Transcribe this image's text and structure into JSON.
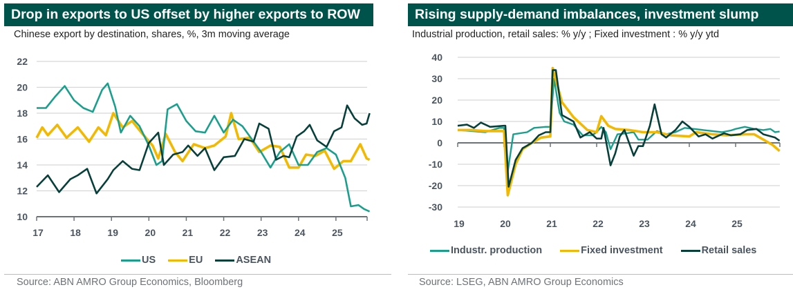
{
  "colors": {
    "header": "#00534a",
    "teal": "#1a9f8c",
    "yellow": "#f2b900",
    "dark": "#073f3a",
    "grid": "#d9d9d9"
  },
  "chart_data": [
    {
      "type": "line",
      "title": "Drop in exports to US offset by higher exports to ROW",
      "subtitle": "Chinese export by destination, shares, %, 3m moving average",
      "source": "Source: ABN AMRO Group Economics, Bloomberg",
      "ylim": [
        10,
        22
      ],
      "yticks": [
        10,
        12,
        14,
        16,
        18,
        20,
        22
      ],
      "xlim": [
        17,
        26
      ],
      "xticks": [
        17,
        18,
        19,
        20,
        21,
        22,
        23,
        24,
        25
      ],
      "legend_position": "bottom",
      "series": [
        {
          "name": "US",
          "color": "#1a9f8c",
          "points": [
            [
              17,
              18.4
            ],
            [
              17.25,
              18.4
            ],
            [
              17.5,
              19.3
            ],
            [
              17.75,
              20.1
            ],
            [
              18,
              19
            ],
            [
              18.25,
              18.4
            ],
            [
              18.5,
              18.1
            ],
            [
              18.75,
              19.8
            ],
            [
              18.9,
              20.3
            ],
            [
              19.1,
              18.5
            ],
            [
              19.25,
              16.5
            ],
            [
              19.5,
              17.8
            ],
            [
              19.75,
              17
            ],
            [
              20,
              15.5
            ],
            [
              20.2,
              14
            ],
            [
              20.35,
              14.3
            ],
            [
              20.5,
              18.3
            ],
            [
              20.75,
              18.7
            ],
            [
              21,
              17.4
            ],
            [
              21.25,
              16.6
            ],
            [
              21.5,
              16.5
            ],
            [
              21.75,
              17.8
            ],
            [
              22,
              16.5
            ],
            [
              22.25,
              17.5
            ],
            [
              22.5,
              17
            ],
            [
              22.75,
              16
            ],
            [
              23,
              15
            ],
            [
              23.25,
              13.8
            ],
            [
              23.5,
              15
            ],
            [
              23.75,
              15.6
            ],
            [
              24,
              14
            ],
            [
              24.25,
              14
            ],
            [
              24.5,
              15
            ],
            [
              24.75,
              15.3
            ],
            [
              25,
              14.8
            ],
            [
              25.25,
              13
            ],
            [
              25.4,
              10.8
            ],
            [
              25.6,
              10.9
            ],
            [
              25.75,
              10.6
            ],
            [
              25.9,
              10.4
            ]
          ]
        },
        {
          "name": "EU",
          "color": "#f2b900",
          "points": [
            [
              17,
              16.1
            ],
            [
              17.15,
              16.9
            ],
            [
              17.3,
              16.3
            ],
            [
              17.55,
              17.1
            ],
            [
              17.8,
              16.1
            ],
            [
              18.1,
              16.9
            ],
            [
              18.4,
              15.8
            ],
            [
              18.65,
              16.9
            ],
            [
              18.85,
              16.3
            ],
            [
              19.05,
              18
            ],
            [
              19.3,
              16.9
            ],
            [
              19.55,
              17.4
            ],
            [
              19.8,
              16.5
            ],
            [
              20.1,
              15.5
            ],
            [
              20.25,
              14.5
            ],
            [
              20.45,
              16.4
            ],
            [
              20.7,
              15
            ],
            [
              20.9,
              14.3
            ],
            [
              21.2,
              15.6
            ],
            [
              21.5,
              15.3
            ],
            [
              21.75,
              15.5
            ],
            [
              22.05,
              16.2
            ],
            [
              22.2,
              18
            ],
            [
              22.4,
              16
            ],
            [
              22.7,
              16.1
            ],
            [
              22.95,
              15
            ],
            [
              23.25,
              15.5
            ],
            [
              23.5,
              15.4
            ],
            [
              23.75,
              13.8
            ],
            [
              24,
              13.8
            ],
            [
              24.2,
              14.8
            ],
            [
              24.45,
              14.7
            ],
            [
              24.7,
              15.1
            ],
            [
              24.95,
              13.7
            ],
            [
              25.2,
              14.3
            ],
            [
              25.4,
              14.3
            ],
            [
              25.65,
              15.6
            ],
            [
              25.82,
              14.5
            ],
            [
              25.9,
              14.4
            ]
          ]
        },
        {
          "name": "ASEAN",
          "color": "#073f3a",
          "points": [
            [
              17,
              12.3
            ],
            [
              17.3,
              13.2
            ],
            [
              17.6,
              11.9
            ],
            [
              17.9,
              12.9
            ],
            [
              18.1,
              13.2
            ],
            [
              18.35,
              13.7
            ],
            [
              18.6,
              11.8
            ],
            [
              18.9,
              12.9
            ],
            [
              19.05,
              13.6
            ],
            [
              19.3,
              14.3
            ],
            [
              19.55,
              13.7
            ],
            [
              19.75,
              13.6
            ],
            [
              20,
              15.7
            ],
            [
              20.25,
              16.5
            ],
            [
              20.4,
              14
            ],
            [
              20.65,
              14.8
            ],
            [
              20.9,
              15
            ],
            [
              21.05,
              15.5
            ],
            [
              21.3,
              14.7
            ],
            [
              21.5,
              15.3
            ],
            [
              21.75,
              13.6
            ],
            [
              22,
              14.6
            ],
            [
              22.3,
              14.7
            ],
            [
              22.55,
              16
            ],
            [
              22.8,
              15.8
            ],
            [
              22.95,
              17.2
            ],
            [
              23.2,
              16.8
            ],
            [
              23.4,
              14.4
            ],
            [
              23.6,
              14.7
            ],
            [
              23.75,
              14.6
            ],
            [
              23.95,
              16.2
            ],
            [
              24.15,
              16.6
            ],
            [
              24.3,
              17.1
            ],
            [
              24.5,
              15.9
            ],
            [
              24.75,
              15.4
            ],
            [
              24.95,
              16.6
            ],
            [
              25.15,
              16.9
            ],
            [
              25.3,
              18.6
            ],
            [
              25.5,
              17.6
            ],
            [
              25.7,
              17.1
            ],
            [
              25.82,
              17.2
            ],
            [
              25.9,
              18
            ]
          ]
        }
      ]
    },
    {
      "type": "line",
      "title": "Rising supply-demand imbalances, investment slump",
      "subtitle": "Industrial production, retail sales: % y/y ; Fixed investment : % y/y ytd",
      "source": "Source: LSEG, ABN AMRO Group Economics",
      "ylim": [
        -30,
        40
      ],
      "yticks": [
        -30,
        -20,
        -10,
        0,
        10,
        20,
        30,
        40
      ],
      "xlim": [
        19,
        26
      ],
      "xticks": [
        19,
        20,
        21,
        22,
        23,
        24,
        25
      ],
      "legend_position": "bottom",
      "series": [
        {
          "name": "Industr. production",
          "color": "#1a9f8c",
          "points": [
            [
              19,
              6
            ],
            [
              19.3,
              5.5
            ],
            [
              19.6,
              5
            ],
            [
              19.9,
              7
            ],
            [
              20,
              7
            ],
            [
              20.08,
              -13.5
            ],
            [
              20.2,
              4
            ],
            [
              20.5,
              5
            ],
            [
              20.65,
              7
            ],
            [
              20.9,
              7.5
            ],
            [
              21,
              7.5
            ],
            [
              21.08,
              30
            ],
            [
              21.2,
              14
            ],
            [
              21.3,
              10
            ],
            [
              21.5,
              8.5
            ],
            [
              21.7,
              3.5
            ],
            [
              21.9,
              3.5
            ],
            [
              22,
              5
            ],
            [
              22.1,
              7.5
            ],
            [
              22.2,
              5
            ],
            [
              22.3,
              -3
            ],
            [
              22.45,
              4
            ],
            [
              22.65,
              4.5
            ],
            [
              22.8,
              5
            ],
            [
              22.9,
              1.5
            ],
            [
              23.1,
              1.5
            ],
            [
              23.3,
              5.5
            ],
            [
              23.5,
              4
            ],
            [
              23.7,
              5
            ],
            [
              23.9,
              7
            ],
            [
              24.1,
              6.5
            ],
            [
              24.3,
              6
            ],
            [
              24.5,
              5.5
            ],
            [
              24.7,
              5
            ],
            [
              24.9,
              5.8
            ],
            [
              25,
              6.5
            ],
            [
              25.2,
              7.5
            ],
            [
              25.4,
              6.5
            ],
            [
              25.6,
              6
            ],
            [
              25.75,
              6.5
            ],
            [
              25.85,
              5
            ],
            [
              25.95,
              5.3
            ]
          ]
        },
        {
          "name": "Fixed investment",
          "color": "#f2b900",
          "points": [
            [
              19,
              6
            ],
            [
              19.3,
              6
            ],
            [
              19.6,
              5.5
            ],
            [
              20,
              5.5
            ],
            [
              20.08,
              -24.5
            ],
            [
              20.25,
              -10
            ],
            [
              20.4,
              -3
            ],
            [
              20.6,
              0
            ],
            [
              20.8,
              2.5
            ],
            [
              21,
              3
            ],
            [
              21.05,
              35
            ],
            [
              21.25,
              19
            ],
            [
              21.5,
              12
            ],
            [
              21.8,
              6
            ],
            [
              22,
              5
            ],
            [
              22.1,
              12.5
            ],
            [
              22.25,
              8
            ],
            [
              22.4,
              6.5
            ],
            [
              22.7,
              6
            ],
            [
              23,
              5
            ],
            [
              23.3,
              5
            ],
            [
              23.6,
              3.5
            ],
            [
              24,
              3
            ],
            [
              24.15,
              5
            ],
            [
              24.5,
              4
            ],
            [
              24.8,
              3.5
            ],
            [
              25.2,
              4
            ],
            [
              25.4,
              4
            ],
            [
              25.6,
              1.5
            ],
            [
              25.8,
              -1
            ],
            [
              25.95,
              -3.8
            ]
          ]
        },
        {
          "name": "Retail sales",
          "color": "#073f3a",
          "points": [
            [
              19,
              8
            ],
            [
              19.2,
              8.5
            ],
            [
              19.35,
              7
            ],
            [
              19.5,
              9.5
            ],
            [
              19.7,
              7.5
            ],
            [
              20,
              8
            ],
            [
              20.03,
              8
            ],
            [
              20.1,
              -20.5
            ],
            [
              20.25,
              -8
            ],
            [
              20.4,
              -2.5
            ],
            [
              20.6,
              0
            ],
            [
              20.75,
              3.5
            ],
            [
              20.9,
              5
            ],
            [
              21,
              5
            ],
            [
              21.05,
              34
            ],
            [
              21.12,
              34
            ],
            [
              21.25,
              13
            ],
            [
              21.5,
              10
            ],
            [
              21.65,
              2.5
            ],
            [
              21.85,
              5
            ],
            [
              22,
              2
            ],
            [
              22.1,
              2
            ],
            [
              22.15,
              7
            ],
            [
              22.3,
              -10.5
            ],
            [
              22.4,
              -5
            ],
            [
              22.5,
              3
            ],
            [
              22.6,
              6
            ],
            [
              22.8,
              -6
            ],
            [
              22.9,
              -1.5
            ],
            [
              23,
              -1.5
            ],
            [
              23.15,
              8
            ],
            [
              23.25,
              18
            ],
            [
              23.4,
              4
            ],
            [
              23.5,
              2.5
            ],
            [
              23.7,
              6
            ],
            [
              23.85,
              10
            ],
            [
              24,
              7.5
            ],
            [
              24.2,
              3
            ],
            [
              24.35,
              4
            ],
            [
              24.5,
              2
            ],
            [
              24.6,
              3
            ],
            [
              24.75,
              4.5
            ],
            [
              24.9,
              3.5
            ],
            [
              25.1,
              4
            ],
            [
              25.25,
              6
            ],
            [
              25.45,
              6.5
            ],
            [
              25.6,
              4
            ],
            [
              25.85,
              2.5
            ],
            [
              25.95,
              1
            ]
          ]
        }
      ]
    }
  ]
}
